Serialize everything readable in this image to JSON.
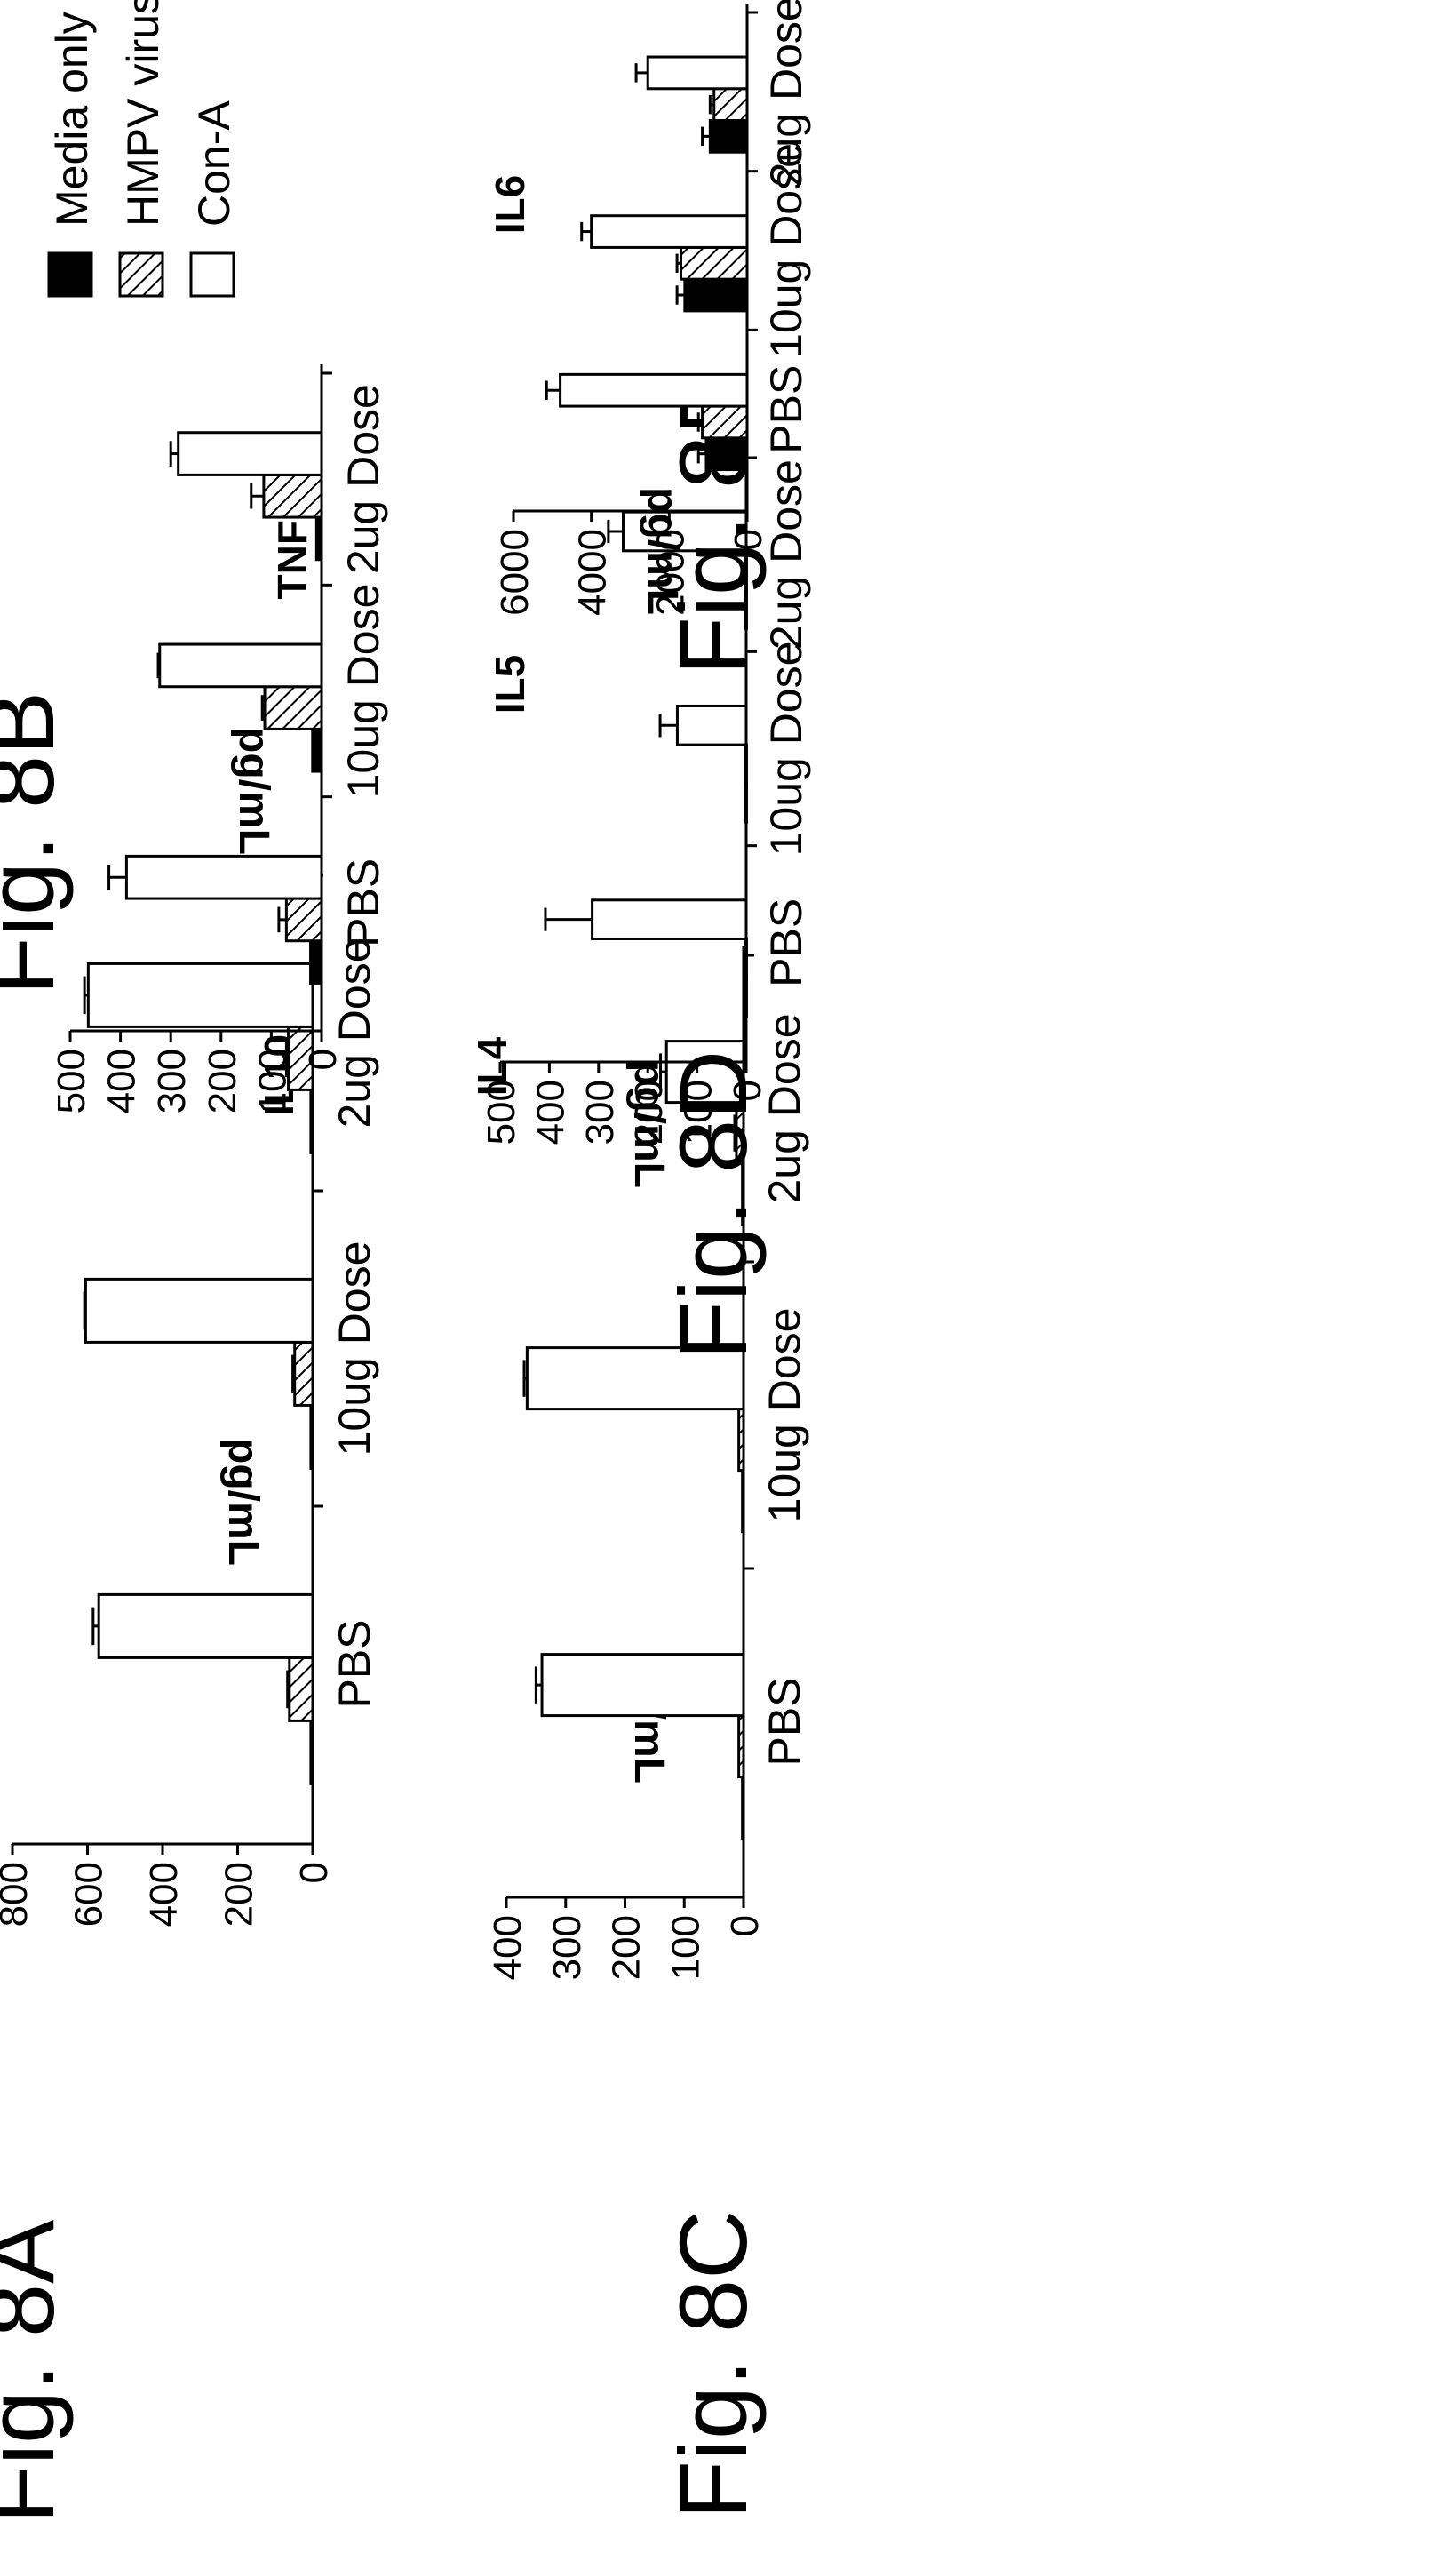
{
  "legend": {
    "items": [
      {
        "label": "Media only",
        "fill": "solid"
      },
      {
        "label": "HMPV virus",
        "fill": "hatched"
      },
      {
        "label": "Con-A",
        "fill": "open"
      }
    ]
  },
  "colors": {
    "ink": "#000000",
    "background": "#ffffff"
  },
  "chart_data": [
    {
      "figure": "Fig. 8A",
      "cytokine": "IL10",
      "type": "bar",
      "ylabel": "pg/mL",
      "ylim": [
        0,
        800
      ],
      "ticks": [
        "0",
        "200",
        "400",
        "600",
        "800"
      ],
      "categories": [
        "PBS",
        "10ug Dose",
        "2ug Dose"
      ],
      "series": [
        {
          "name": "Media only",
          "values": [
            5,
            5,
            5
          ],
          "errors": [
            0,
            0,
            0
          ]
        },
        {
          "name": "HMPV virus",
          "values": [
            62,
            48,
            65
          ],
          "errors": [
            5,
            5,
            5
          ]
        },
        {
          "name": "Con-A",
          "values": [
            570,
            605,
            598
          ],
          "errors": [
            15,
            3,
            10
          ]
        }
      ]
    },
    {
      "figure": "Fig. 8B",
      "cytokine": "TNF-α",
      "type": "bar",
      "ylabel": "pg/mL",
      "ylim": [
        0,
        500
      ],
      "ticks": [
        "0",
        "100",
        "200",
        "300",
        "400",
        "500"
      ],
      "categories": [
        "PBS",
        "10ug Dose",
        "2ug Dose"
      ],
      "series": [
        {
          "name": "Media only",
          "values": [
            22,
            18,
            10
          ],
          "errors": [
            0,
            0,
            0
          ]
        },
        {
          "name": "HMPV virus",
          "values": [
            70,
            113,
            115
          ],
          "errors": [
            15,
            5,
            25
          ]
        },
        {
          "name": "Con-A",
          "values": [
            388,
            322,
            285
          ],
          "errors": [
            35,
            3,
            15
          ]
        }
      ]
    },
    {
      "figure": "Fig. 8C",
      "cytokine": "IL4",
      "type": "bar",
      "ylabel": "pg/mL",
      "ylim": [
        0,
        400
      ],
      "ticks": [
        "0",
        "100",
        "200",
        "300",
        "400"
      ],
      "categories": [
        "PBS",
        "10ug Dose",
        "2ug Dose"
      ],
      "series": [
        {
          "name": "Media only",
          "values": [
            2,
            2,
            2
          ],
          "errors": [
            0,
            0,
            0
          ]
        },
        {
          "name": "HMPV virus",
          "values": [
            8,
            8,
            12
          ],
          "errors": [
            0,
            0,
            3
          ]
        },
        {
          "name": "Con-A",
          "values": [
            340,
            365,
            130
          ],
          "errors": [
            10,
            5,
            10
          ]
        }
      ]
    },
    {
      "figure": "Fig. 8D",
      "cytokine": "IL5",
      "type": "bar",
      "ylabel": "pg/mL",
      "ylim": [
        0,
        500
      ],
      "ticks": [
        "0",
        "100",
        "200",
        "300",
        "400",
        "500"
      ],
      "categories": [
        "PBS",
        "10ug Dose",
        "2ug Dose"
      ],
      "series": [
        {
          "name": "Media only",
          "values": [
            1,
            1,
            1
          ],
          "errors": [
            0,
            0,
            0
          ]
        },
        {
          "name": "HMPV virus",
          "values": [
            1,
            1,
            1
          ],
          "errors": [
            0,
            0,
            0
          ]
        },
        {
          "name": "Con-A",
          "values": [
            313,
            140,
            250
          ],
          "errors": [
            95,
            35,
            30
          ]
        }
      ]
    },
    {
      "figure": "Fig. 8E",
      "cytokine": "IL6",
      "type": "bar",
      "ylabel": "pg/mL",
      "ylim": [
        0,
        6000
      ],
      "ticks": [
        "0",
        "2000",
        "4000",
        "6000"
      ],
      "categories": [
        "PBS",
        "10ug Dose",
        "2ug Dose"
      ],
      "series": [
        {
          "name": "Media only",
          "values": [
            1050,
            1600,
            950
          ],
          "errors": [
            200,
            200,
            200
          ]
        },
        {
          "name": "HMPV virus",
          "values": [
            1150,
            1700,
            850
          ],
          "errors": [
            100,
            100,
            100
          ]
        },
        {
          "name": "Con-A",
          "values": [
            4800,
            4000,
            2550
          ],
          "errors": [
            350,
            250,
            300
          ]
        }
      ]
    }
  ]
}
